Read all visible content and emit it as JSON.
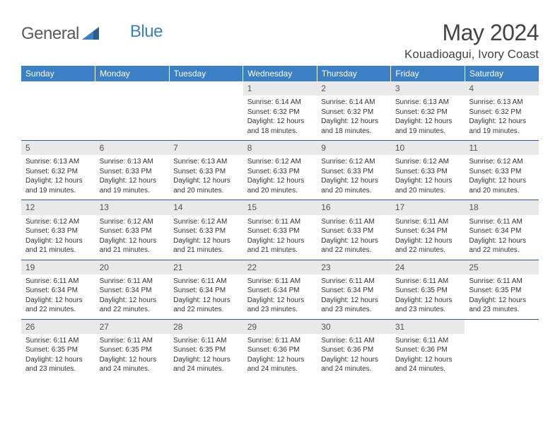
{
  "brand": {
    "part1": "General",
    "part2": "Blue",
    "shape_color": "#2e5c8a"
  },
  "header": {
    "title": "May 2024",
    "location": "Kouadioagui, Ivory Coast"
  },
  "colors": {
    "header_bg": "#3b7fc4",
    "header_text": "#ffffff",
    "daynum_bg": "#e9e9e9",
    "border": "#2e5c8a",
    "text": "#333333"
  },
  "weekdays": [
    "Sunday",
    "Monday",
    "Tuesday",
    "Wednesday",
    "Thursday",
    "Friday",
    "Saturday"
  ],
  "weeks": [
    [
      {
        "day": "",
        "sunrise": "",
        "sunset": "",
        "daylight": ""
      },
      {
        "day": "",
        "sunrise": "",
        "sunset": "",
        "daylight": ""
      },
      {
        "day": "",
        "sunrise": "",
        "sunset": "",
        "daylight": ""
      },
      {
        "day": "1",
        "sunrise": "Sunrise: 6:14 AM",
        "sunset": "Sunset: 6:32 PM",
        "daylight": "Daylight: 12 hours and 18 minutes."
      },
      {
        "day": "2",
        "sunrise": "Sunrise: 6:14 AM",
        "sunset": "Sunset: 6:32 PM",
        "daylight": "Daylight: 12 hours and 18 minutes."
      },
      {
        "day": "3",
        "sunrise": "Sunrise: 6:13 AM",
        "sunset": "Sunset: 6:32 PM",
        "daylight": "Daylight: 12 hours and 19 minutes."
      },
      {
        "day": "4",
        "sunrise": "Sunrise: 6:13 AM",
        "sunset": "Sunset: 6:32 PM",
        "daylight": "Daylight: 12 hours and 19 minutes."
      }
    ],
    [
      {
        "day": "5",
        "sunrise": "Sunrise: 6:13 AM",
        "sunset": "Sunset: 6:32 PM",
        "daylight": "Daylight: 12 hours and 19 minutes."
      },
      {
        "day": "6",
        "sunrise": "Sunrise: 6:13 AM",
        "sunset": "Sunset: 6:33 PM",
        "daylight": "Daylight: 12 hours and 19 minutes."
      },
      {
        "day": "7",
        "sunrise": "Sunrise: 6:13 AM",
        "sunset": "Sunset: 6:33 PM",
        "daylight": "Daylight: 12 hours and 20 minutes."
      },
      {
        "day": "8",
        "sunrise": "Sunrise: 6:12 AM",
        "sunset": "Sunset: 6:33 PM",
        "daylight": "Daylight: 12 hours and 20 minutes."
      },
      {
        "day": "9",
        "sunrise": "Sunrise: 6:12 AM",
        "sunset": "Sunset: 6:33 PM",
        "daylight": "Daylight: 12 hours and 20 minutes."
      },
      {
        "day": "10",
        "sunrise": "Sunrise: 6:12 AM",
        "sunset": "Sunset: 6:33 PM",
        "daylight": "Daylight: 12 hours and 20 minutes."
      },
      {
        "day": "11",
        "sunrise": "Sunrise: 6:12 AM",
        "sunset": "Sunset: 6:33 PM",
        "daylight": "Daylight: 12 hours and 20 minutes."
      }
    ],
    [
      {
        "day": "12",
        "sunrise": "Sunrise: 6:12 AM",
        "sunset": "Sunset: 6:33 PM",
        "daylight": "Daylight: 12 hours and 21 minutes."
      },
      {
        "day": "13",
        "sunrise": "Sunrise: 6:12 AM",
        "sunset": "Sunset: 6:33 PM",
        "daylight": "Daylight: 12 hours and 21 minutes."
      },
      {
        "day": "14",
        "sunrise": "Sunrise: 6:12 AM",
        "sunset": "Sunset: 6:33 PM",
        "daylight": "Daylight: 12 hours and 21 minutes."
      },
      {
        "day": "15",
        "sunrise": "Sunrise: 6:11 AM",
        "sunset": "Sunset: 6:33 PM",
        "daylight": "Daylight: 12 hours and 21 minutes."
      },
      {
        "day": "16",
        "sunrise": "Sunrise: 6:11 AM",
        "sunset": "Sunset: 6:33 PM",
        "daylight": "Daylight: 12 hours and 22 minutes."
      },
      {
        "day": "17",
        "sunrise": "Sunrise: 6:11 AM",
        "sunset": "Sunset: 6:34 PM",
        "daylight": "Daylight: 12 hours and 22 minutes."
      },
      {
        "day": "18",
        "sunrise": "Sunrise: 6:11 AM",
        "sunset": "Sunset: 6:34 PM",
        "daylight": "Daylight: 12 hours and 22 minutes."
      }
    ],
    [
      {
        "day": "19",
        "sunrise": "Sunrise: 6:11 AM",
        "sunset": "Sunset: 6:34 PM",
        "daylight": "Daylight: 12 hours and 22 minutes."
      },
      {
        "day": "20",
        "sunrise": "Sunrise: 6:11 AM",
        "sunset": "Sunset: 6:34 PM",
        "daylight": "Daylight: 12 hours and 22 minutes."
      },
      {
        "day": "21",
        "sunrise": "Sunrise: 6:11 AM",
        "sunset": "Sunset: 6:34 PM",
        "daylight": "Daylight: 12 hours and 22 minutes."
      },
      {
        "day": "22",
        "sunrise": "Sunrise: 6:11 AM",
        "sunset": "Sunset: 6:34 PM",
        "daylight": "Daylight: 12 hours and 23 minutes."
      },
      {
        "day": "23",
        "sunrise": "Sunrise: 6:11 AM",
        "sunset": "Sunset: 6:34 PM",
        "daylight": "Daylight: 12 hours and 23 minutes."
      },
      {
        "day": "24",
        "sunrise": "Sunrise: 6:11 AM",
        "sunset": "Sunset: 6:35 PM",
        "daylight": "Daylight: 12 hours and 23 minutes."
      },
      {
        "day": "25",
        "sunrise": "Sunrise: 6:11 AM",
        "sunset": "Sunset: 6:35 PM",
        "daylight": "Daylight: 12 hours and 23 minutes."
      }
    ],
    [
      {
        "day": "26",
        "sunrise": "Sunrise: 6:11 AM",
        "sunset": "Sunset: 6:35 PM",
        "daylight": "Daylight: 12 hours and 23 minutes."
      },
      {
        "day": "27",
        "sunrise": "Sunrise: 6:11 AM",
        "sunset": "Sunset: 6:35 PM",
        "daylight": "Daylight: 12 hours and 24 minutes."
      },
      {
        "day": "28",
        "sunrise": "Sunrise: 6:11 AM",
        "sunset": "Sunset: 6:35 PM",
        "daylight": "Daylight: 12 hours and 24 minutes."
      },
      {
        "day": "29",
        "sunrise": "Sunrise: 6:11 AM",
        "sunset": "Sunset: 6:36 PM",
        "daylight": "Daylight: 12 hours and 24 minutes."
      },
      {
        "day": "30",
        "sunrise": "Sunrise: 6:11 AM",
        "sunset": "Sunset: 6:36 PM",
        "daylight": "Daylight: 12 hours and 24 minutes."
      },
      {
        "day": "31",
        "sunrise": "Sunrise: 6:11 AM",
        "sunset": "Sunset: 6:36 PM",
        "daylight": "Daylight: 12 hours and 24 minutes."
      },
      {
        "day": "",
        "sunrise": "",
        "sunset": "",
        "daylight": ""
      }
    ]
  ]
}
